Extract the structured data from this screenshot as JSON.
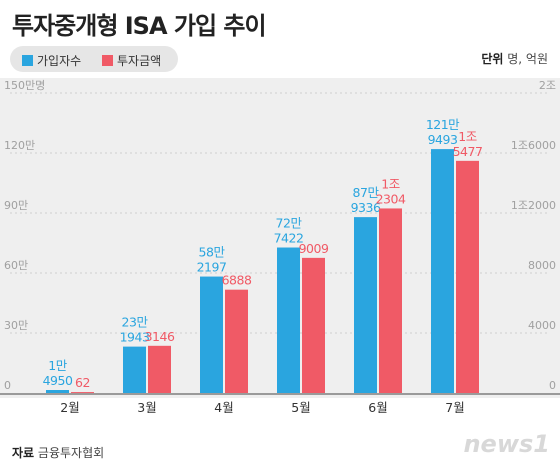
{
  "header": {
    "title": "투자중개형 ISA 가입 추이"
  },
  "legend": {
    "items": [
      {
        "label": "가입자수",
        "color": "#2aa5df"
      },
      {
        "label": "투자금액",
        "color": "#f05a66"
      }
    ]
  },
  "unit": {
    "label": "단위",
    "value": "명, 억원"
  },
  "source": {
    "label": "자료",
    "value": "금융투자협회"
  },
  "logo": {
    "text": "news1"
  },
  "chart_data": {
    "type": "bar",
    "title": "투자중개형 ISA 가입 추이",
    "categories": [
      "2월",
      "3월",
      "4월",
      "5월",
      "6월",
      "7월"
    ],
    "y_left": {
      "min": 0,
      "max": 1500000,
      "ticks": [
        0,
        300000,
        600000,
        900000,
        1200000,
        1500000
      ],
      "tick_labels": [
        "0",
        "30만",
        "60만",
        "90만",
        "120만",
        "150만명"
      ]
    },
    "y_right": {
      "min": 0,
      "max": 20000,
      "ticks": [
        0,
        4000,
        8000,
        12000,
        16000,
        20000
      ],
      "tick_labels": [
        "0",
        "4000",
        "8000",
        "1조2000",
        "1조6000",
        "2조"
      ]
    },
    "series": [
      {
        "name": "가입자수",
        "axis": "left",
        "color": "#2aa5df",
        "values": [
          14950,
          231943,
          582197,
          727422,
          879336,
          1219493
        ],
        "labels": [
          [
            "1만",
            "4950"
          ],
          [
            "23만",
            "1943"
          ],
          [
            "58만",
            "2197"
          ],
          [
            "72만",
            "7422"
          ],
          [
            "87만",
            "9336"
          ],
          [
            "121만",
            "9493"
          ]
        ]
      },
      {
        "name": "투자금액",
        "axis": "right",
        "color": "#f05a66",
        "values": [
          62,
          3146,
          6888,
          9009,
          12304,
          15477
        ],
        "labels": [
          [
            "62"
          ],
          [
            "3146"
          ],
          [
            "6888"
          ],
          [
            "9009"
          ],
          [
            "1조",
            "2304"
          ],
          [
            "1조",
            "5477"
          ]
        ]
      }
    ]
  }
}
